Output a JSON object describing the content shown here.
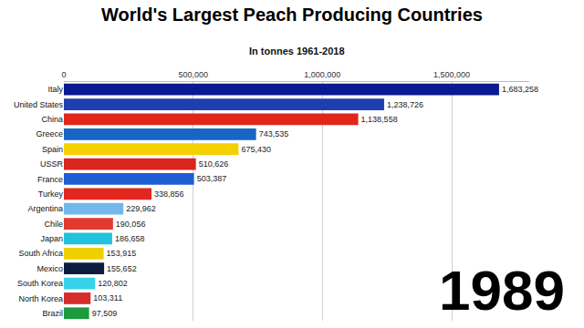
{
  "chart_data": {
    "type": "bar",
    "title": "World's Largest Peach Producing Countries",
    "subtitle": "In tonnes 1961-2018",
    "orientation": "horizontal",
    "categories": [
      "Italy",
      "United States",
      "China",
      "Greece",
      "Spain",
      "USSR",
      "France",
      "Turkey",
      "Argentina",
      "Chile",
      "Japan",
      "South Africa",
      "Mexico",
      "South Korea",
      "North Korea",
      "Brazil"
    ],
    "values": [
      1683258,
      1238726,
      1138558,
      743535,
      675430,
      510626,
      503387,
      338856,
      229962,
      190056,
      186658,
      153915,
      155652,
      120802,
      103311,
      97509
    ],
    "value_labels": [
      "1,683,258",
      "1,238,726",
      "1,138,558",
      "743,535",
      "675,430",
      "510,626",
      "503,387",
      "338,856",
      "229,962",
      "190,056",
      "186,658",
      "153,915",
      "155,652",
      "120,802",
      "103,311",
      "97,509"
    ],
    "colors": [
      "#0b1a8f",
      "#1f3fae",
      "#e3261c",
      "#1667c4",
      "#f5d000",
      "#d9261e",
      "#1d5fd3",
      "#e2271f",
      "#73b8ea",
      "#e23a2e",
      "#22c3da",
      "#f0cf00",
      "#0c1c3d",
      "#35d2ea",
      "#d42d2d",
      "#1c9a3c"
    ],
    "xlim": [
      0,
      1800000
    ],
    "xticks": [
      0,
      {
        "value": 500000,
        "label": "500,000"
      },
      {
        "value": 1000000,
        "label": "1,000,000"
      },
      {
        "value": 1500000,
        "label": "1,500,000"
      }
    ],
    "grid": true,
    "data_labels": true,
    "annotations": [
      "1989"
    ]
  }
}
